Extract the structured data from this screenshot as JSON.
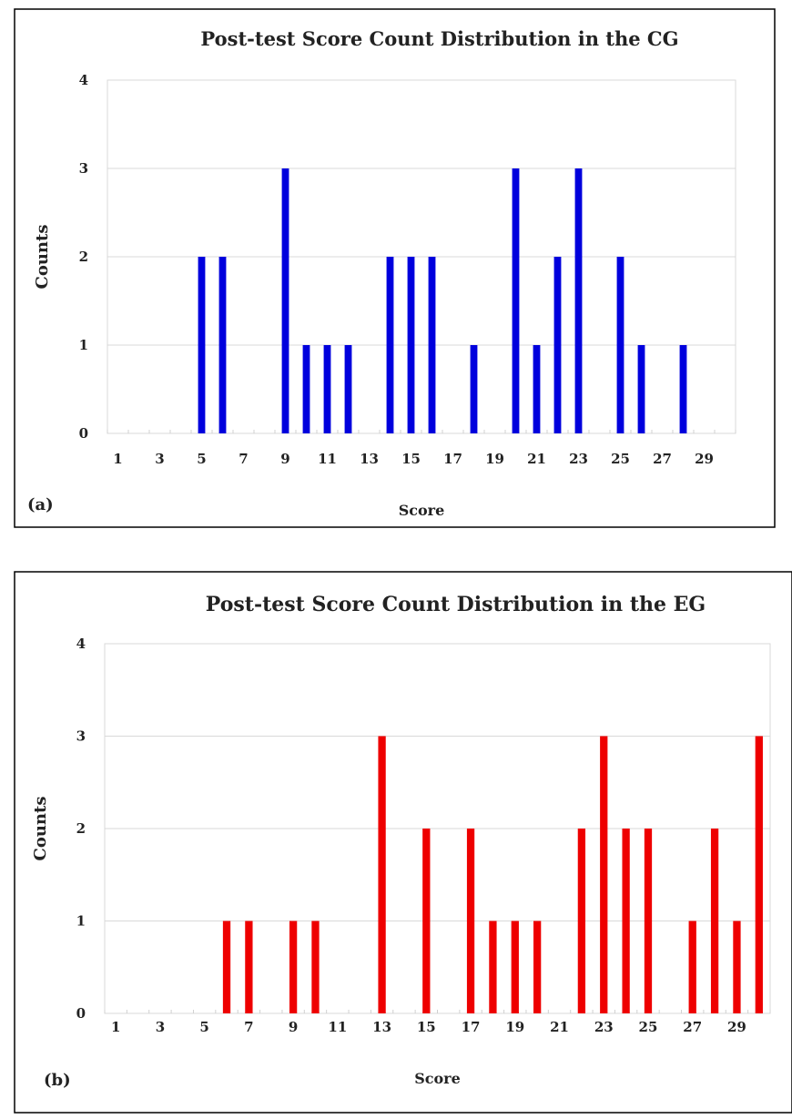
{
  "chart_data": [
    {
      "type": "bar",
      "panel_label": "(a)",
      "title": "Post-test Score Count Distribution in the CG",
      "xlabel": "Score",
      "ylabel": "Counts",
      "ylim": [
        0,
        4
      ],
      "yticks": [
        "0",
        "1",
        "2",
        "3",
        "4"
      ],
      "xticks": [
        "1",
        "3",
        "5",
        "7",
        "9",
        "11",
        "13",
        "15",
        "17",
        "19",
        "21",
        "23",
        "25",
        "27",
        "29"
      ],
      "x_domain": [
        1,
        30
      ],
      "grid": true,
      "color": "#0000dd",
      "x": [
        5,
        6,
        9,
        10,
        11,
        12,
        14,
        15,
        16,
        18,
        20,
        21,
        22,
        23,
        25,
        26,
        28
      ],
      "values": [
        2,
        2,
        3,
        1,
        1,
        1,
        2,
        2,
        2,
        1,
        3,
        1,
        2,
        3,
        2,
        1,
        1
      ]
    },
    {
      "type": "bar",
      "panel_label": "(b)",
      "title": "Post-test Score Count Distribution in the EG",
      "xlabel": "Score",
      "ylabel": "Counts",
      "ylim": [
        0,
        4
      ],
      "yticks": [
        "0",
        "1",
        "2",
        "3",
        "4"
      ],
      "xticks": [
        "1",
        "3",
        "5",
        "7",
        "9",
        "11",
        "13",
        "15",
        "17",
        "19",
        "21",
        "23",
        "25",
        "27",
        "29"
      ],
      "x_domain": [
        1,
        30
      ],
      "grid": true,
      "color": "#ee0000",
      "x": [
        6,
        7,
        9,
        10,
        13,
        15,
        17,
        18,
        19,
        20,
        22,
        23,
        24,
        25,
        27,
        28,
        29,
        30
      ],
      "values": [
        1,
        1,
        1,
        1,
        3,
        2,
        2,
        1,
        1,
        1,
        2,
        3,
        2,
        2,
        1,
        2,
        1,
        3
      ]
    }
  ]
}
